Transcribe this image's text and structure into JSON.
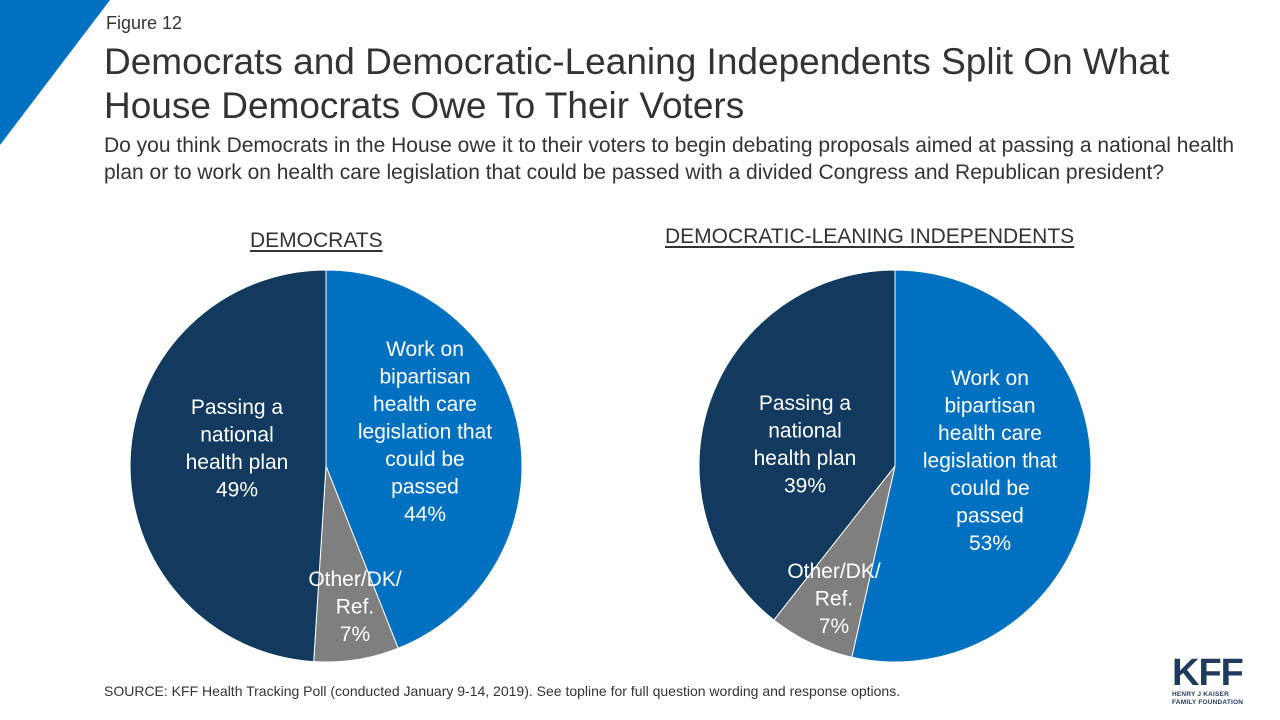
{
  "header": {
    "figure_label": "Figure 12",
    "title": "Democrats and Democratic-Leaning Independents Split On What House Democrats Owe To Their Voters",
    "question": "Do you think Democrats in the House owe it to their voters to begin debating proposals aimed at passing a national health plan or to work on health care legislation that could be passed with a divided Congress and Republican president?"
  },
  "colors": {
    "accent": "#0070c0",
    "dark_navy": "#123a5e",
    "blue": "#0070c0",
    "gray": "#7f7f7f"
  },
  "chart_data": [
    {
      "type": "pie",
      "title": "DEMOCRATS",
      "slices": [
        {
          "label_lines": [
            "Work on",
            "bipartisan",
            "health care",
            "legislation that",
            "could be",
            "passed"
          ],
          "label": "Work on bipartisan health care legislation that could be passed",
          "value": 44,
          "value_text": "44%",
          "color": "#0070c0"
        },
        {
          "label_lines": [
            "Other/DK/",
            "Ref."
          ],
          "label": "Other/DK/Ref.",
          "value": 7,
          "value_text": "7%",
          "color": "#7f7f7f"
        },
        {
          "label_lines": [
            "Passing a",
            "national",
            "health plan"
          ],
          "label": "Passing a national health plan",
          "value": 49,
          "value_text": "49%",
          "color": "#123a5e"
        }
      ]
    },
    {
      "type": "pie",
      "title": "DEMOCRATIC-LEANING  INDEPENDENTS",
      "slices": [
        {
          "label_lines": [
            "Work on",
            "bipartisan",
            "health care",
            "legislation that",
            "could be",
            "passed"
          ],
          "label": "Work on bipartisan health care legislation that could be passed",
          "value": 53,
          "value_text": "53%",
          "color": "#0070c0"
        },
        {
          "label_lines": [
            "Other/DK/",
            "Ref."
          ],
          "label": "Other/DK/Ref.",
          "value": 7,
          "value_text": "7%",
          "color": "#7f7f7f"
        },
        {
          "label_lines": [
            "Passing a",
            "national",
            "health plan"
          ],
          "label": "Passing a national health plan",
          "value": 39,
          "value_text": "39%",
          "color": "#123a5e"
        }
      ]
    }
  ],
  "footer": {
    "source": "SOURCE: KFF Health Tracking Poll (conducted January 9-14, 2019). See topline for full question wording and response options.",
    "logo_mark": "KFF",
    "logo_line1": "HENRY J KAISER",
    "logo_line2": "FAMILY FOUNDATION"
  }
}
